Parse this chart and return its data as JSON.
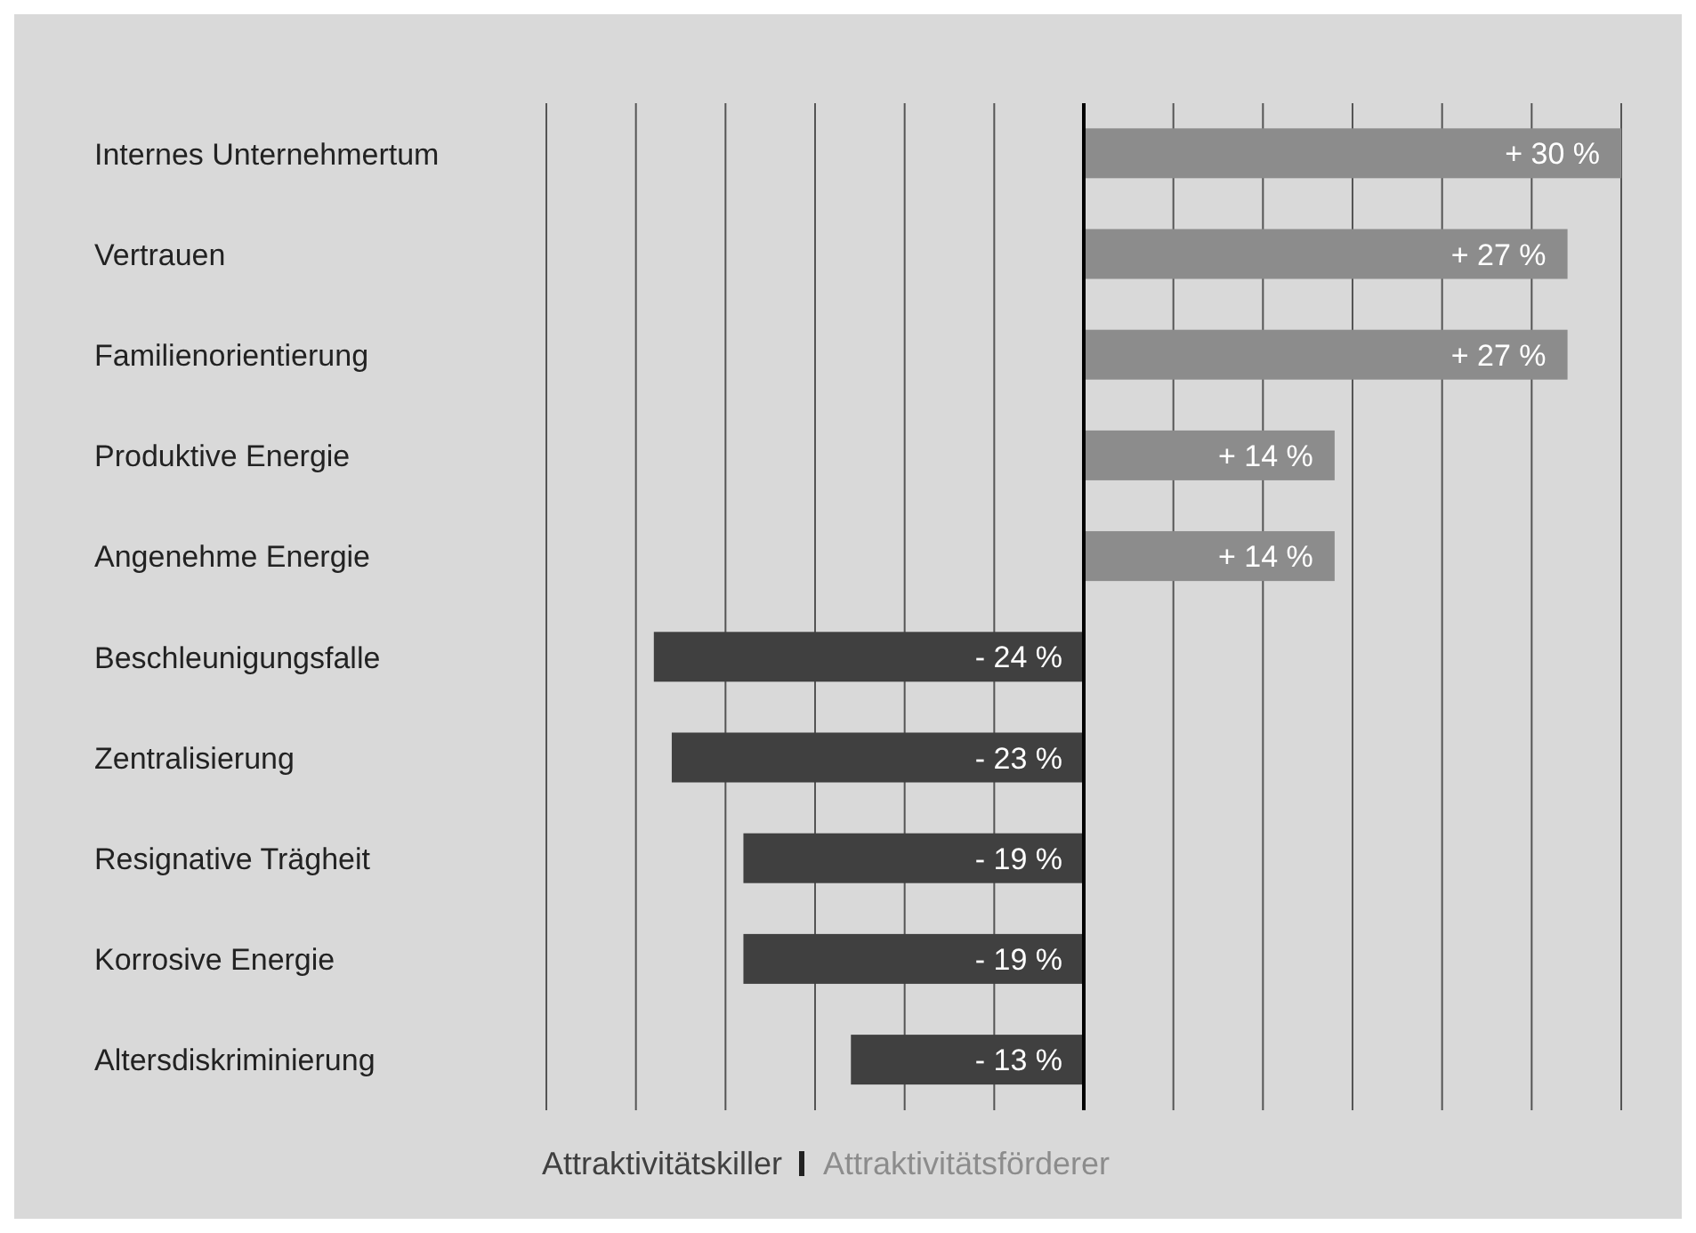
{
  "chart_data": {
    "type": "bar",
    "orientation": "horizontal",
    "stacked": true,
    "categories": [
      "Internes Unternehmertum",
      "Vertrauen",
      "Familienorientierung",
      "Produktive Energie",
      "Angenehme Energie",
      "Beschleunigungsfalle",
      "Zentralisierung",
      "Resignative Trägheit",
      "Korrosive Energie",
      "Altersdiskriminierung"
    ],
    "series": [
      {
        "name": "Attraktivitätskiller",
        "color": "#404040",
        "values": [
          null,
          null,
          null,
          null,
          null,
          -24,
          -23,
          -19,
          -19,
          -13
        ],
        "value_labels": [
          null,
          null,
          null,
          null,
          null,
          "- 24 %",
          "- 23 %",
          "- 19 %",
          "- 19 %",
          "- 13 %"
        ]
      },
      {
        "name": "Attraktivitätsförderer",
        "color": "#8c8c8c",
        "values": [
          30,
          27,
          27,
          14,
          14,
          null,
          null,
          null,
          null,
          null
        ],
        "value_labels": [
          "+ 30 %",
          "+ 27 %",
          "+ 27 %",
          "+ 14 %",
          "+ 14 %",
          null,
          null,
          null,
          null,
          null
        ]
      }
    ],
    "xlim": [
      -30,
      30
    ],
    "xticks": [
      {
        "value": -30,
        "label": null
      },
      {
        "value": -25,
        "label": null
      },
      {
        "value": -20,
        "label": null
      },
      {
        "value": -15,
        "label": null
      },
      {
        "value": -10,
        "label": null
      },
      {
        "value": -5,
        "label": null
      },
      {
        "value": 0,
        "label": null
      },
      {
        "value": 5,
        "label": null
      },
      {
        "value": 10,
        "label": null
      },
      {
        "value": 15,
        "label": null
      },
      {
        "value": 20,
        "label": null
      },
      {
        "value": 25,
        "label": null
      },
      {
        "value": 30,
        "label": null
      }
    ],
    "grid": "x",
    "tick_labels": "y",
    "legend": "bottom",
    "ref_lines": [
      {
        "axis": "x",
        "value": 0,
        "color": "#000000"
      }
    ]
  }
}
